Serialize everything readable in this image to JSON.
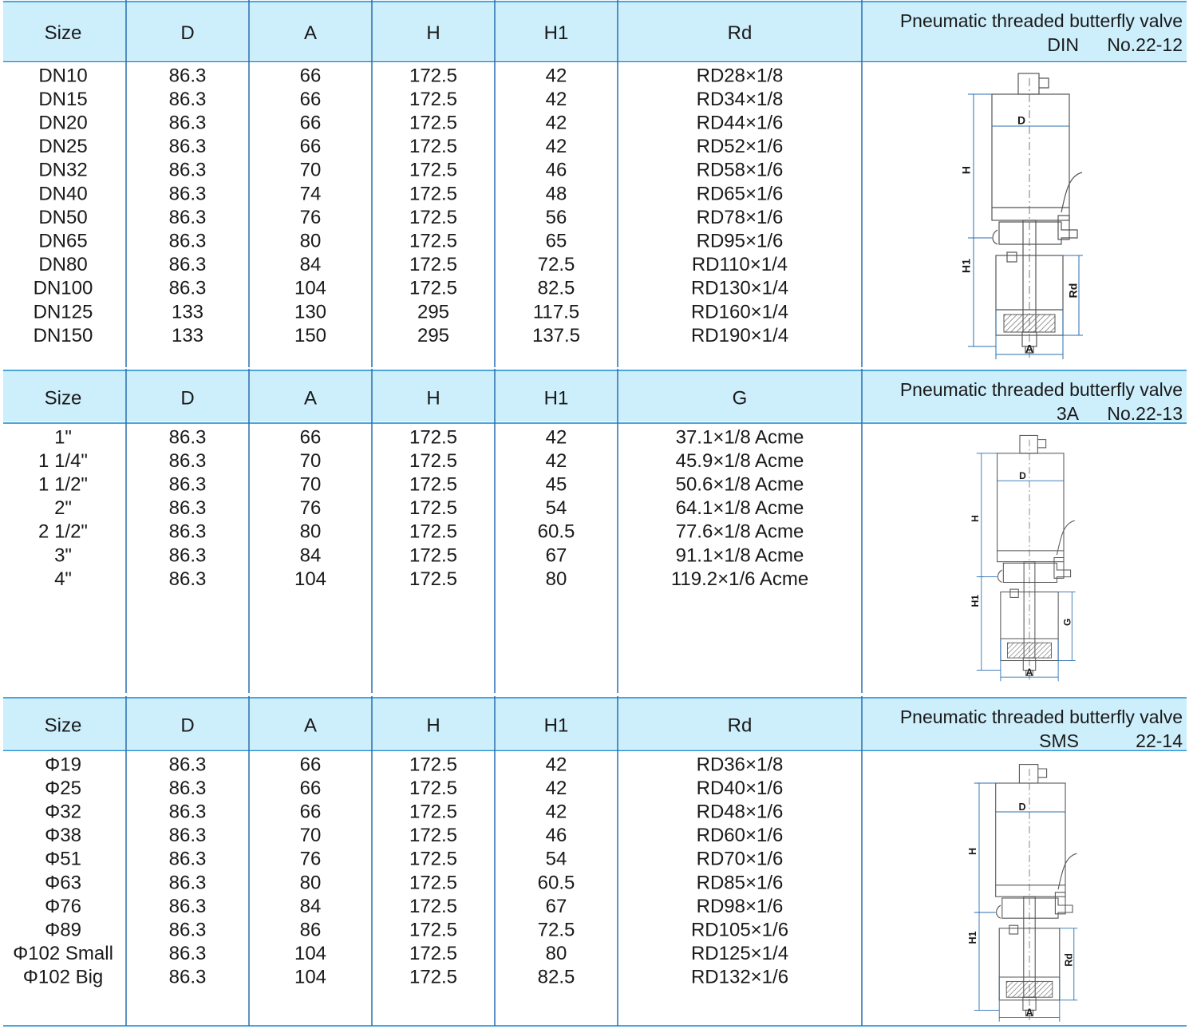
{
  "sections": [
    {
      "title": "Pneumatic threaded butterfly valve",
      "standard": "DIN",
      "code": "No.22-12",
      "columns": [
        "Size",
        "D",
        "A",
        "H",
        "H1",
        "Rd"
      ],
      "rows": [
        [
          "DN10",
          "86.3",
          "66",
          "172.5",
          "42",
          "RD28×1/8"
        ],
        [
          "DN15",
          "86.3",
          "66",
          "172.5",
          "42",
          "RD34×1/8"
        ],
        [
          "DN20",
          "86.3",
          "66",
          "172.5",
          "42",
          "RD44×1/6"
        ],
        [
          "DN25",
          "86.3",
          "66",
          "172.5",
          "42",
          "RD52×1/6"
        ],
        [
          "DN32",
          "86.3",
          "70",
          "172.5",
          "46",
          "RD58×1/6"
        ],
        [
          "DN40",
          "86.3",
          "74",
          "172.5",
          "48",
          "RD65×1/6"
        ],
        [
          "DN50",
          "86.3",
          "76",
          "172.5",
          "56",
          "RD78×1/6"
        ],
        [
          "DN65",
          "86.3",
          "80",
          "172.5",
          "65",
          "RD95×1/6"
        ],
        [
          "DN80",
          "86.3",
          "84",
          "172.5",
          "72.5",
          "RD110×1/4"
        ],
        [
          "DN100",
          "86.3",
          "104",
          "172.5",
          "82.5",
          "RD130×1/4"
        ],
        [
          "DN125",
          "133",
          "130",
          "295",
          "117.5",
          "RD160×1/4"
        ],
        [
          "DN150",
          "133",
          "150",
          "295",
          "137.5",
          "RD190×1/4"
        ]
      ],
      "diagram": {
        "d": "D",
        "h": "H",
        "h1": "H1",
        "side": "Rd",
        "a": "A"
      }
    },
    {
      "title": "Pneumatic threaded butterfly valve",
      "standard": "3A",
      "code": "No.22-13",
      "columns": [
        "Size",
        "D",
        "A",
        "H",
        "H1",
        "G"
      ],
      "rows": [
        [
          "1\"",
          "86.3",
          "66",
          "172.5",
          "42",
          "37.1×1/8 Acme"
        ],
        [
          "1 1/4\"",
          "86.3",
          "70",
          "172.5",
          "42",
          "45.9×1/8 Acme"
        ],
        [
          "1 1/2\"",
          "86.3",
          "70",
          "172.5",
          "45",
          "50.6×1/8 Acme"
        ],
        [
          "2\"",
          "86.3",
          "76",
          "172.5",
          "54",
          "64.1×1/8 Acme"
        ],
        [
          "2 1/2\"",
          "86.3",
          "80",
          "172.5",
          "60.5",
          "77.6×1/8 Acme"
        ],
        [
          "3\"",
          "86.3",
          "84",
          "172.5",
          "67",
          "91.1×1/8 Acme"
        ],
        [
          "4\"",
          "86.3",
          "104",
          "172.5",
          "80",
          "119.2×1/6 Acme"
        ]
      ],
      "diagram": {
        "d": "D",
        "h": "H",
        "h1": "H1",
        "side": "G",
        "a": "A"
      }
    },
    {
      "title": "Pneumatic threaded butterfly valve",
      "standard": "SMS",
      "code": "22-14",
      "columns": [
        "Size",
        "D",
        "A",
        "H",
        "H1",
        "Rd"
      ],
      "rows": [
        [
          "Φ19",
          "86.3",
          "66",
          "172.5",
          "42",
          "RD36×1/8"
        ],
        [
          "Φ25",
          "86.3",
          "66",
          "172.5",
          "42",
          "RD40×1/6"
        ],
        [
          "Φ32",
          "86.3",
          "66",
          "172.5",
          "42",
          "RD48×1/6"
        ],
        [
          "Φ38",
          "86.3",
          "70",
          "172.5",
          "46",
          "RD60×1/6"
        ],
        [
          "Φ51",
          "86.3",
          "76",
          "172.5",
          "54",
          "RD70×1/6"
        ],
        [
          "Φ63",
          "86.3",
          "80",
          "172.5",
          "60.5",
          "RD85×1/6"
        ],
        [
          "Φ76",
          "86.3",
          "84",
          "172.5",
          "67",
          "RD98×1/6"
        ],
        [
          "Φ89",
          "86.3",
          "86",
          "172.5",
          "72.5",
          "RD105×1/6"
        ],
        [
          "Φ102 Small",
          "86.3",
          "104",
          "172.5",
          "80",
          "RD125×1/4"
        ],
        [
          "Φ102 Big",
          "86.3",
          "104",
          "172.5",
          "82.5",
          "RD132×1/6"
        ]
      ],
      "diagram": {
        "d": "D",
        "h": "H",
        "h1": "H1",
        "side": "Rd",
        "a": "A"
      }
    }
  ]
}
